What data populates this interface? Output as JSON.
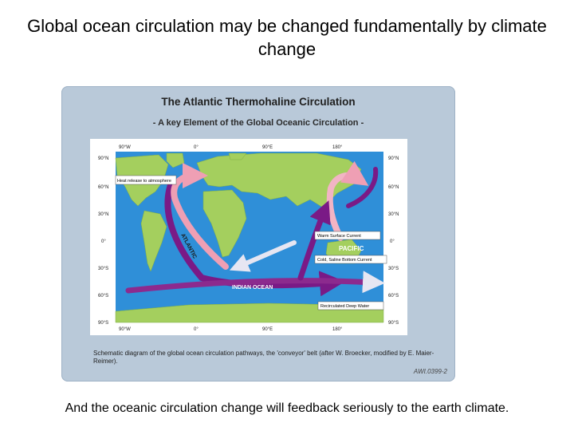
{
  "slide": {
    "title": "Global ocean circulation may be changed fundamentally by climate change",
    "bottom_text": "And the oceanic circulation change will feedback seriously to the earth climate."
  },
  "figure": {
    "title": "The Atlantic Thermohaline Circulation",
    "subtitle": "- A key Element of the Global Oceanic Circulation -",
    "top_axis": [
      "90°W",
      "0°",
      "90°E",
      "180°"
    ],
    "bottom_axis": [
      "90°W",
      "0°",
      "90°E",
      "180°"
    ],
    "left_axis": [
      "90°N",
      "60°N",
      "30°N",
      "0°",
      "30°S",
      "60°S",
      "90°S"
    ],
    "right_axis": [
      "90°N",
      "60°N",
      "30°N",
      "0°",
      "30°S",
      "60°S",
      "90°S"
    ],
    "labels": {
      "heat": "Heat release to atmosphere",
      "atlantic": "ATLANTIC",
      "pacific": "PACIFIC",
      "indian": "INDIAN OCEAN",
      "warm": "Warm Surface Current",
      "cold": "Cold, Saline Bottom Current",
      "recirc": "Recirculated Deep Water"
    },
    "caption": "Schematic diagram of the global ocean circulation pathways, the 'conveyor' belt (after W. Broecker, modified by E. Maier-Reimer).",
    "code": "AWI.0399-2",
    "colors": {
      "ocean": "#2f8fd8",
      "land": "#a4cf5e",
      "warm": "#ef9fb4",
      "cold": "#7a1a86"
    }
  }
}
